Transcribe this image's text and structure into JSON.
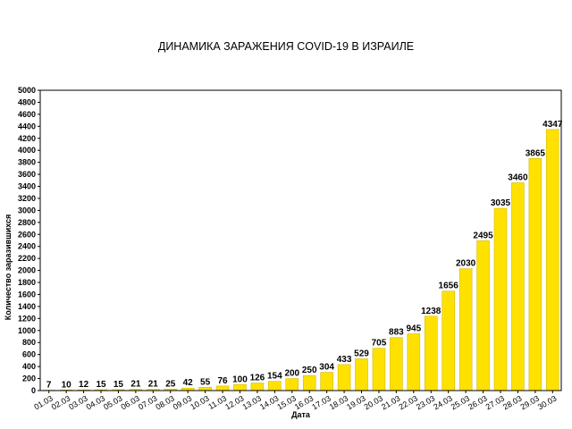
{
  "chart_data": {
    "type": "bar",
    "title": "ДИНАМИКА ЗАРАЖЕНИЯ COVID-19 В ИЗРАИЛЕ",
    "xlabel": "Дата",
    "ylabel": "Количество заразившихся",
    "ylim": [
      0,
      5000
    ],
    "ytick_step": 200,
    "grid": false,
    "bar_color": "#FFE100",
    "bar_edge_color": "#C8B000",
    "categories": [
      "01.03",
      "02.03",
      "03.03",
      "04.03",
      "05.03",
      "06.03",
      "07.03",
      "08.03",
      "09.03",
      "10.03",
      "11.03",
      "12.03",
      "13.03",
      "14.03",
      "15.03",
      "16.03",
      "17.03",
      "18.03",
      "19.03",
      "20.03",
      "21.03",
      "22.03",
      "23.03",
      "24.03",
      "25.03",
      "26.03",
      "27.03",
      "28.03",
      "29.03",
      "30.03"
    ],
    "values": [
      7,
      10,
      12,
      15,
      15,
      21,
      21,
      25,
      42,
      55,
      76,
      100,
      126,
      154,
      200,
      250,
      304,
      433,
      529,
      705,
      883,
      945,
      1238,
      1656,
      2030,
      2495,
      3035,
      3460,
      3865,
      4347
    ]
  }
}
